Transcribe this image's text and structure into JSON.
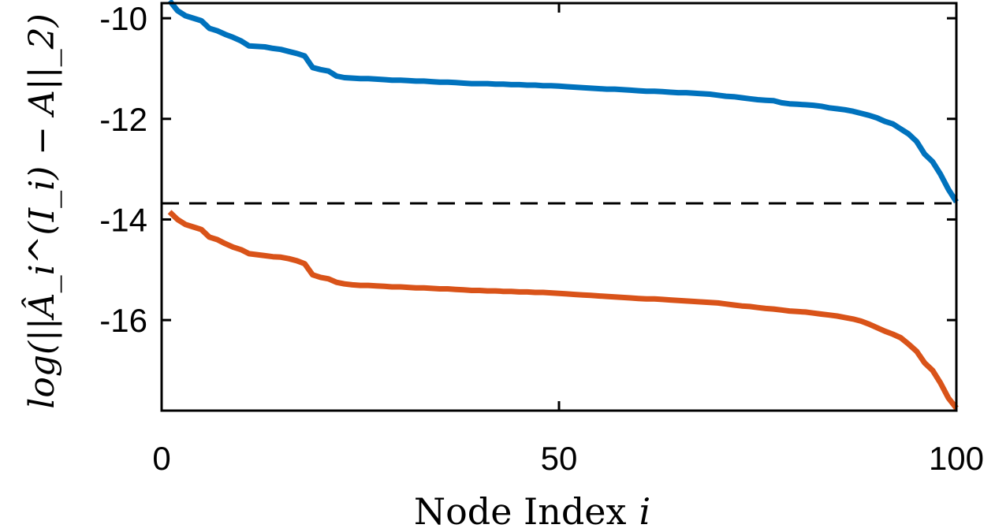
{
  "chart_data": {
    "type": "line",
    "xlabel": "Node Index",
    "xlabel_symbol": "i",
    "ylabel": "log(||Â_i^(I_i) − A||_2)",
    "xlim": [
      0,
      100
    ],
    "ylim": [
      -17.8,
      -9.7
    ],
    "xticks": [
      0,
      50,
      100
    ],
    "xtick_labels": [
      "0",
      "50",
      "100"
    ],
    "yticks": [
      -10,
      -12,
      -14,
      -16
    ],
    "ytick_labels": [
      "-10",
      "-12",
      "-14",
      "-16"
    ],
    "grid": false,
    "reference_lines": [
      {
        "y": -13.68,
        "style": "dashed",
        "color": "#000000"
      }
    ],
    "x": [
      1,
      2,
      3,
      4,
      5,
      6,
      7,
      8,
      9,
      10,
      11,
      12,
      13,
      14,
      15,
      16,
      17,
      18,
      19,
      20,
      21,
      22,
      23,
      24,
      25,
      26,
      27,
      28,
      29,
      30,
      31,
      32,
      33,
      34,
      35,
      36,
      37,
      38,
      39,
      40,
      41,
      42,
      43,
      44,
      45,
      46,
      47,
      48,
      49,
      50,
      51,
      52,
      53,
      54,
      55,
      56,
      57,
      58,
      59,
      60,
      61,
      62,
      63,
      64,
      65,
      66,
      67,
      68,
      69,
      70,
      71,
      72,
      73,
      74,
      75,
      76,
      77,
      78,
      79,
      80,
      81,
      82,
      83,
      84,
      85,
      86,
      87,
      88,
      89,
      90,
      91,
      92,
      93,
      94,
      95,
      96,
      97,
      98,
      99,
      100
    ],
    "series": [
      {
        "color": "#0072BD",
        "values": [
          -9.65,
          -9.85,
          -9.95,
          -10.0,
          -10.05,
          -10.2,
          -10.25,
          -10.32,
          -10.38,
          -10.45,
          -10.55,
          -10.56,
          -10.57,
          -10.6,
          -10.62,
          -10.66,
          -10.7,
          -10.75,
          -10.98,
          -11.02,
          -11.05,
          -11.15,
          -11.18,
          -11.19,
          -11.2,
          -11.2,
          -11.21,
          -11.22,
          -11.23,
          -11.23,
          -11.24,
          -11.25,
          -11.25,
          -11.26,
          -11.27,
          -11.27,
          -11.28,
          -11.29,
          -11.3,
          -11.3,
          -11.3,
          -11.31,
          -11.31,
          -11.32,
          -11.32,
          -11.33,
          -11.33,
          -11.34,
          -11.34,
          -11.35,
          -11.36,
          -11.37,
          -11.38,
          -11.39,
          -11.4,
          -11.41,
          -11.41,
          -11.42,
          -11.43,
          -11.44,
          -11.45,
          -11.45,
          -11.46,
          -11.47,
          -11.48,
          -11.48,
          -11.49,
          -11.5,
          -11.51,
          -11.53,
          -11.55,
          -11.56,
          -11.58,
          -11.6,
          -11.62,
          -11.63,
          -11.64,
          -11.68,
          -11.7,
          -11.71,
          -11.72,
          -11.73,
          -11.75,
          -11.78,
          -11.8,
          -11.82,
          -11.85,
          -11.89,
          -11.93,
          -11.98,
          -12.05,
          -12.1,
          -12.2,
          -12.3,
          -12.45,
          -12.7,
          -12.85,
          -13.1,
          -13.4,
          -13.65
        ]
      },
      {
        "color": "#D95319",
        "values": [
          -13.85,
          -14.0,
          -14.1,
          -14.15,
          -14.2,
          -14.35,
          -14.4,
          -14.48,
          -14.55,
          -14.6,
          -14.68,
          -14.7,
          -14.72,
          -14.74,
          -14.75,
          -14.78,
          -14.82,
          -14.88,
          -15.1,
          -15.15,
          -15.18,
          -15.25,
          -15.28,
          -15.3,
          -15.31,
          -15.31,
          -15.32,
          -15.33,
          -15.34,
          -15.34,
          -15.35,
          -15.36,
          -15.36,
          -15.37,
          -15.38,
          -15.38,
          -15.39,
          -15.4,
          -15.41,
          -15.41,
          -15.42,
          -15.42,
          -15.43,
          -15.43,
          -15.44,
          -15.44,
          -15.45,
          -15.45,
          -15.46,
          -15.47,
          -15.48,
          -15.49,
          -15.5,
          -15.51,
          -15.52,
          -15.53,
          -15.54,
          -15.55,
          -15.56,
          -15.57,
          -15.58,
          -15.58,
          -15.59,
          -15.6,
          -15.61,
          -15.62,
          -15.63,
          -15.64,
          -15.65,
          -15.66,
          -15.68,
          -15.7,
          -15.72,
          -15.73,
          -15.75,
          -15.77,
          -15.78,
          -15.8,
          -15.82,
          -15.83,
          -15.84,
          -15.86,
          -15.88,
          -15.9,
          -15.92,
          -15.95,
          -15.98,
          -16.02,
          -16.08,
          -16.15,
          -16.22,
          -16.28,
          -16.35,
          -16.48,
          -16.62,
          -16.85,
          -17.0,
          -17.25,
          -17.55,
          -17.75
        ]
      }
    ]
  }
}
